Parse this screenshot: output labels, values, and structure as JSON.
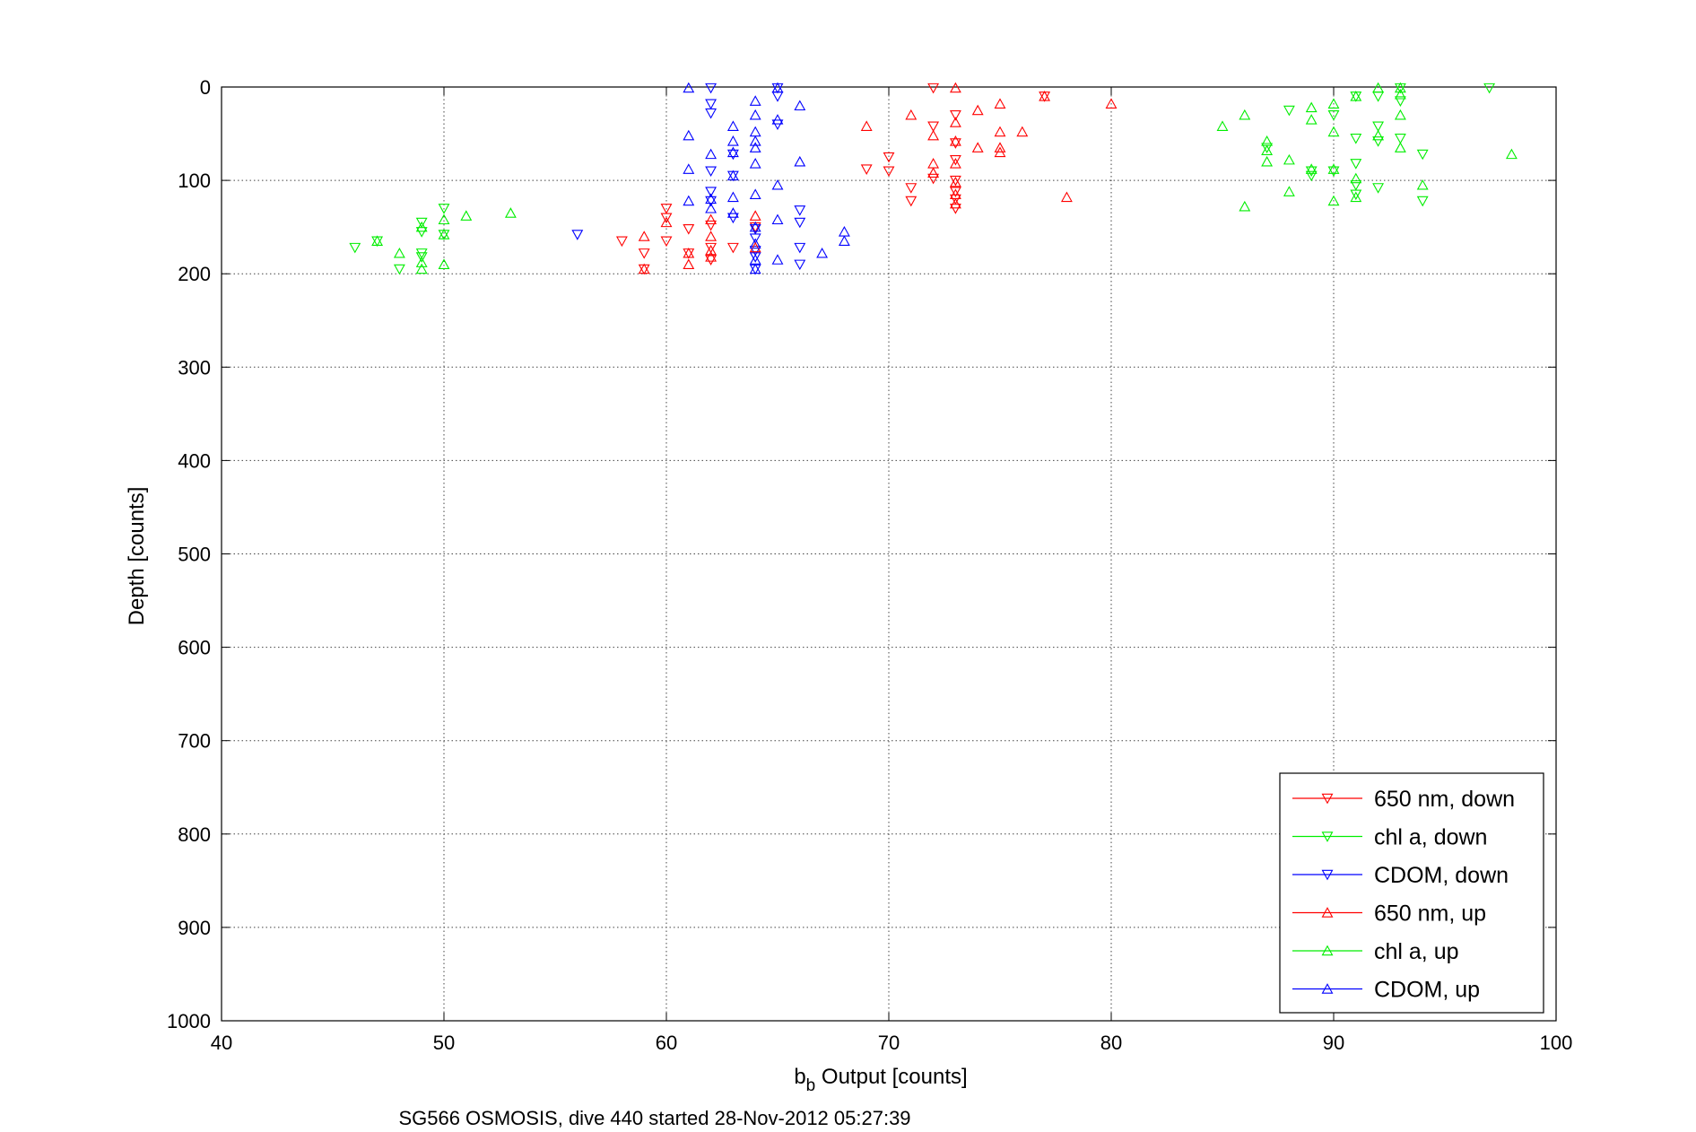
{
  "caption": "SG566 OSMOSIS, dive 440 started 28-Nov-2012 05:27:39",
  "chart_data": {
    "type": "scatter",
    "title": "",
    "xlabel_main": "b",
    "xlabel_sub": "b",
    "xlabel_rest": " Output [counts]",
    "ylabel": "Depth [counts]",
    "xlim": [
      40,
      100
    ],
    "ylim": [
      0,
      1000
    ],
    "y_reversed": true,
    "grid": true,
    "legend_position": "bottom-right",
    "x_ticks": [
      40,
      50,
      60,
      70,
      80,
      90,
      100
    ],
    "y_ticks": [
      0,
      100,
      200,
      300,
      400,
      500,
      600,
      700,
      800,
      900,
      1000
    ],
    "x_tick_labels": [
      "40",
      "50",
      "60",
      "70",
      "80",
      "90",
      "100"
    ],
    "y_tick_labels": [
      "0",
      "100",
      "200",
      "300",
      "400",
      "500",
      "600",
      "700",
      "800",
      "900",
      "1000"
    ],
    "series": [
      {
        "name": "650 nm, down",
        "color": "#ff0000",
        "marker": "triangle-down",
        "points": [
          [
            72,
            1
          ],
          [
            77,
            10
          ],
          [
            73,
            30
          ],
          [
            72,
            42
          ],
          [
            73,
            60
          ],
          [
            73,
            78
          ],
          [
            70,
            75
          ],
          [
            69,
            88
          ],
          [
            70,
            90
          ],
          [
            73,
            100
          ],
          [
            72,
            98
          ],
          [
            71,
            108
          ],
          [
            73,
            112
          ],
          [
            73,
            120
          ],
          [
            71,
            122
          ],
          [
            73,
            130
          ],
          [
            60,
            130
          ],
          [
            60,
            140
          ],
          [
            61,
            152
          ],
          [
            62,
            148
          ],
          [
            64,
            150
          ],
          [
            62,
            172
          ],
          [
            63,
            172
          ],
          [
            58,
            165
          ],
          [
            60,
            165
          ],
          [
            59,
            178
          ],
          [
            61,
            178
          ],
          [
            62,
            185
          ],
          [
            59,
            195
          ]
        ]
      },
      {
        "name": "chl a, down",
        "color": "#00ee00",
        "marker": "triangle-down",
        "points": [
          [
            97,
            1
          ],
          [
            93,
            1
          ],
          [
            93,
            15
          ],
          [
            92,
            10
          ],
          [
            91,
            10
          ],
          [
            88,
            25
          ],
          [
            90,
            30
          ],
          [
            92,
            42
          ],
          [
            93,
            55
          ],
          [
            91,
            55
          ],
          [
            92,
            58
          ],
          [
            94,
            72
          ],
          [
            87,
            65
          ],
          [
            89,
            90
          ],
          [
            90,
            90
          ],
          [
            91,
            82
          ],
          [
            89,
            95
          ],
          [
            91,
            105
          ],
          [
            92,
            108
          ],
          [
            91,
            115
          ],
          [
            94,
            122
          ],
          [
            50,
            130
          ],
          [
            49,
            145
          ],
          [
            50,
            158
          ],
          [
            49,
            155
          ],
          [
            47,
            165
          ],
          [
            46,
            172
          ],
          [
            49,
            178
          ],
          [
            48,
            195
          ],
          [
            49,
            182
          ]
        ]
      },
      {
        "name": "CDOM, down",
        "color": "#0000ff",
        "marker": "triangle-down",
        "points": [
          [
            62,
            1
          ],
          [
            65,
            1
          ],
          [
            65,
            10
          ],
          [
            62,
            18
          ],
          [
            62,
            28
          ],
          [
            65,
            40
          ],
          [
            63,
            72
          ],
          [
            62,
            90
          ],
          [
            63,
            95
          ],
          [
            62,
            112
          ],
          [
            62,
            122
          ],
          [
            63,
            140
          ],
          [
            66,
            132
          ],
          [
            66,
            145
          ],
          [
            64,
            152
          ],
          [
            64,
            162
          ],
          [
            66,
            172
          ],
          [
            64,
            175
          ],
          [
            64,
            182
          ],
          [
            64,
            195
          ],
          [
            56,
            158
          ],
          [
            66,
            190
          ]
        ]
      },
      {
        "name": "650 nm, up",
        "color": "#ff0000",
        "marker": "triangle-up",
        "points": [
          [
            73,
            1
          ],
          [
            77,
            10
          ],
          [
            80,
            18
          ],
          [
            75,
            18
          ],
          [
            74,
            25
          ],
          [
            71,
            30
          ],
          [
            73,
            38
          ],
          [
            69,
            42
          ],
          [
            75,
            48
          ],
          [
            72,
            52
          ],
          [
            76,
            48
          ],
          [
            73,
            58
          ],
          [
            74,
            65
          ],
          [
            75,
            65
          ],
          [
            75,
            70
          ],
          [
            72,
            82
          ],
          [
            73,
            82
          ],
          [
            72,
            92
          ],
          [
            73,
            102
          ],
          [
            73,
            115
          ],
          [
            78,
            118
          ],
          [
            73,
            125
          ],
          [
            64,
            138
          ],
          [
            62,
            142
          ],
          [
            60,
            145
          ],
          [
            59,
            160
          ],
          [
            62,
            160
          ],
          [
            64,
            172
          ],
          [
            62,
            175
          ],
          [
            61,
            178
          ],
          [
            62,
            182
          ],
          [
            61,
            190
          ],
          [
            59,
            195
          ]
        ]
      },
      {
        "name": "chl a, up",
        "color": "#00ee00",
        "marker": "triangle-up",
        "points": [
          [
            92,
            1
          ],
          [
            93,
            1
          ],
          [
            93,
            8
          ],
          [
            91,
            10
          ],
          [
            90,
            18
          ],
          [
            89,
            22
          ],
          [
            86,
            30
          ],
          [
            93,
            30
          ],
          [
            89,
            35
          ],
          [
            85,
            42
          ],
          [
            90,
            48
          ],
          [
            92,
            52
          ],
          [
            87,
            58
          ],
          [
            93,
            65
          ],
          [
            87,
            68
          ],
          [
            98,
            72
          ],
          [
            88,
            78
          ],
          [
            87,
            80
          ],
          [
            90,
            88
          ],
          [
            89,
            88
          ],
          [
            91,
            98
          ],
          [
            94,
            105
          ],
          [
            88,
            112
          ],
          [
            91,
            118
          ],
          [
            90,
            122
          ],
          [
            86,
            128
          ],
          [
            53,
            135
          ],
          [
            51,
            138
          ],
          [
            50,
            142
          ],
          [
            49,
            150
          ],
          [
            50,
            158
          ],
          [
            47,
            165
          ],
          [
            48,
            178
          ],
          [
            49,
            188
          ],
          [
            50,
            190
          ],
          [
            49,
            195
          ]
        ]
      },
      {
        "name": "CDOM, up",
        "color": "#0000ff",
        "marker": "triangle-up",
        "points": [
          [
            61,
            1
          ],
          [
            65,
            1
          ],
          [
            64,
            15
          ],
          [
            66,
            20
          ],
          [
            64,
            30
          ],
          [
            65,
            35
          ],
          [
            63,
            42
          ],
          [
            64,
            48
          ],
          [
            61,
            52
          ],
          [
            63,
            58
          ],
          [
            64,
            58
          ],
          [
            64,
            65
          ],
          [
            62,
            72
          ],
          [
            63,
            70
          ],
          [
            66,
            80
          ],
          [
            64,
            82
          ],
          [
            61,
            88
          ],
          [
            63,
            95
          ],
          [
            65,
            105
          ],
          [
            64,
            115
          ],
          [
            63,
            118
          ],
          [
            62,
            120
          ],
          [
            61,
            122
          ],
          [
            62,
            130
          ],
          [
            63,
            135
          ],
          [
            65,
            142
          ],
          [
            64,
            150
          ],
          [
            68,
            155
          ],
          [
            68,
            165
          ],
          [
            64,
            168
          ],
          [
            67,
            178
          ],
          [
            64,
            185
          ],
          [
            65,
            185
          ],
          [
            64,
            195
          ]
        ]
      }
    ]
  }
}
